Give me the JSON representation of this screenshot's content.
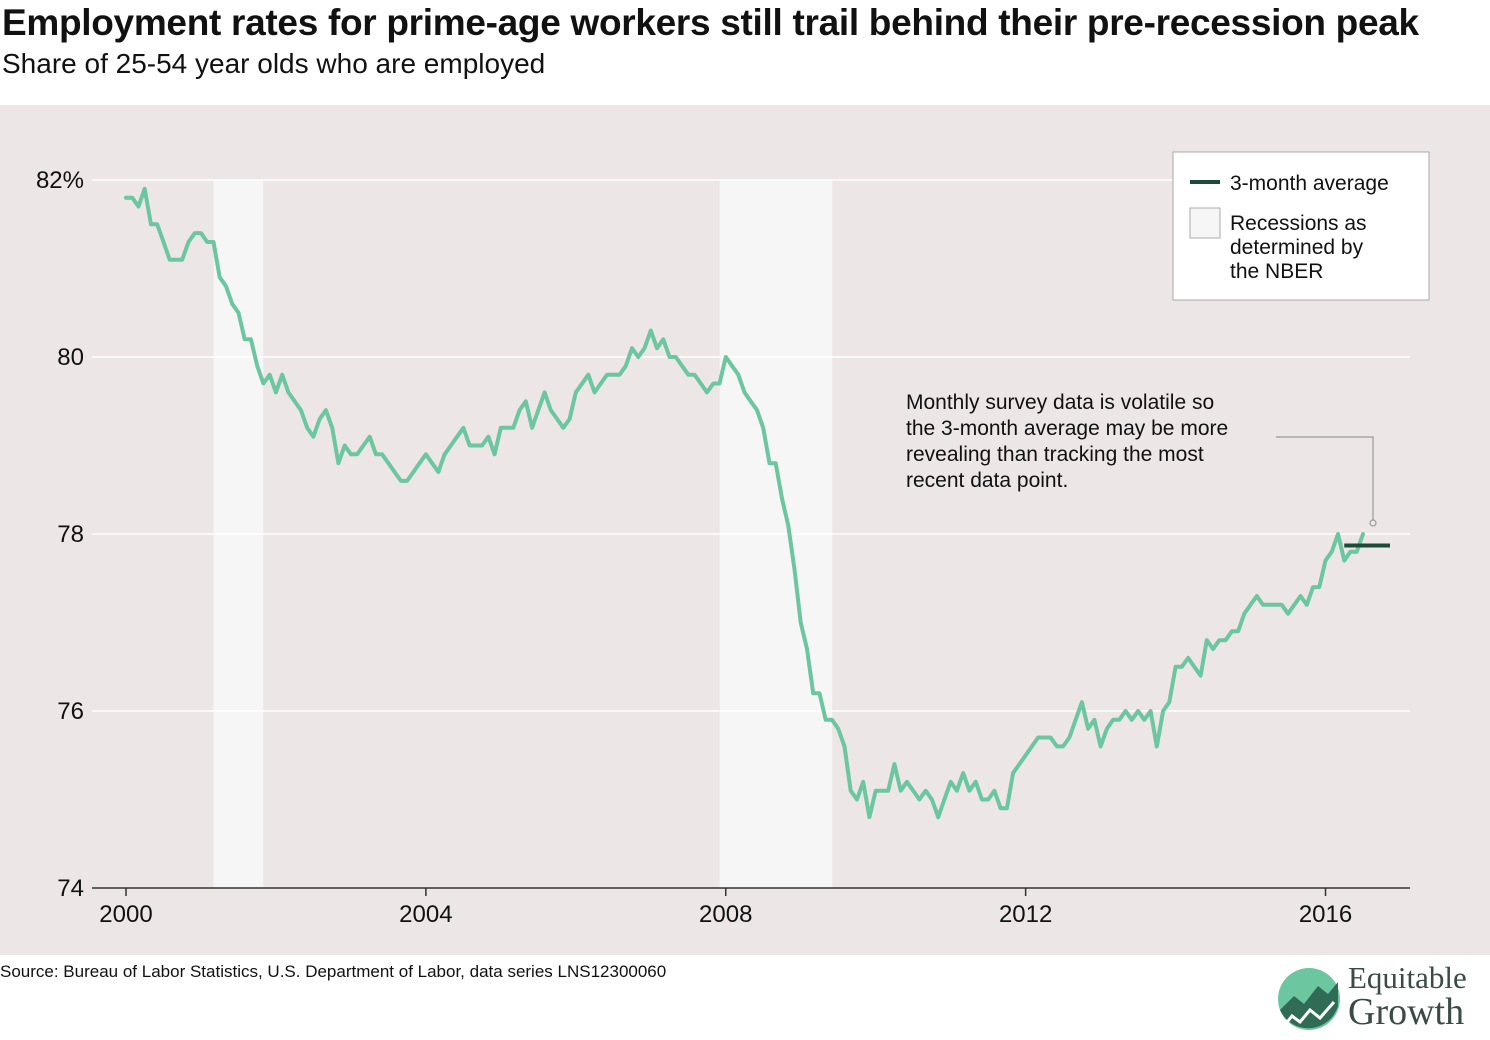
{
  "title": "Employment rates for prime-age workers still trail behind their pre-recession peak",
  "subtitle": "Share of 25-54 year olds who are employed",
  "source": "Source: Bureau of Labor Statistics, U.S. Department of Labor, data series LNS12300060",
  "logo": {
    "line1": "Equitable",
    "line2": "Growth"
  },
  "colors": {
    "background": "#ece7e6",
    "line": "#6cc6a0",
    "average": "#1d4b3a",
    "recession": "#f7f6f6",
    "grid": "#ffffff"
  },
  "chart_data": {
    "type": "line",
    "x_ticks": [
      "2000",
      "2004",
      "2008",
      "2012",
      "2016"
    ],
    "y_ticks": [
      "82%",
      "80",
      "78",
      "76",
      "74"
    ],
    "ylim": [
      74,
      82
    ],
    "xlim": [
      2000,
      2017
    ],
    "recessions": [
      {
        "start": 2001.17,
        "end": 2001.83
      },
      {
        "start": 2007.92,
        "end": 2009.42
      }
    ],
    "legend": {
      "average_label": "3-month average",
      "recession_label_lines": [
        "Recessions as",
        "determined by",
        "the NBER"
      ]
    },
    "annotation": {
      "lines": [
        "Monthly survey data is volatile so",
        "the 3-month average may be more",
        "revealing than tracking the most",
        "recent data point."
      ]
    },
    "average": {
      "start": 2016.25,
      "end": 2016.83,
      "value": 77.87
    },
    "series": [
      {
        "start_year": 2000,
        "values": [
          81.8,
          81.8,
          81.7,
          81.9,
          81.5,
          81.5,
          81.3,
          81.1,
          81.1,
          81.1,
          81.3,
          81.4,
          81.4,
          81.3,
          81.3,
          80.9,
          80.8,
          80.6,
          80.5,
          80.2,
          80.2,
          79.9,
          79.7,
          79.8,
          79.6,
          79.8,
          79.6,
          79.5,
          79.4,
          79.2,
          79.1,
          79.3,
          79.4,
          79.2,
          78.8,
          79.0,
          78.9,
          78.9,
          79.0,
          79.1,
          78.9,
          78.9,
          78.8,
          78.7,
          78.6,
          78.6,
          78.7,
          78.8,
          78.9,
          78.8,
          78.7,
          78.9,
          79.0,
          79.1,
          79.2,
          79.0,
          79.0,
          79.0,
          79.1,
          78.9,
          79.2,
          79.2,
          79.2,
          79.4,
          79.5,
          79.2,
          79.4,
          79.6,
          79.4,
          79.3,
          79.2,
          79.3,
          79.6,
          79.7,
          79.8,
          79.6,
          79.7,
          79.8,
          79.8,
          79.8,
          79.9,
          80.1,
          80.0,
          80.1,
          80.3,
          80.1,
          80.2,
          80.0,
          80.0,
          79.9,
          79.8,
          79.8,
          79.7,
          79.6,
          79.7,
          79.7,
          80.0,
          79.9,
          79.8,
          79.6,
          79.5,
          79.4,
          79.2,
          78.8,
          78.8,
          78.4,
          78.1,
          77.6,
          77.0,
          76.7,
          76.2,
          76.2,
          75.9,
          75.9,
          75.8,
          75.6,
          75.1,
          75.0,
          75.2,
          74.8,
          75.1,
          75.1,
          75.1,
          75.4,
          75.1,
          75.2,
          75.1,
          75.0,
          75.1,
          75.0,
          74.8,
          75.0,
          75.2,
          75.1,
          75.3,
          75.1,
          75.2,
          75.0,
          75.0,
          75.1,
          74.9,
          74.9,
          75.3,
          75.4,
          75.5,
          75.6,
          75.7,
          75.7,
          75.7,
          75.6,
          75.6,
          75.7,
          75.9,
          76.1,
          75.8,
          75.9,
          75.6,
          75.8,
          75.9,
          75.9,
          76.0,
          75.9,
          76.0,
          75.9,
          76.0,
          75.6,
          76.0,
          76.1,
          76.5,
          76.5,
          76.6,
          76.5,
          76.4,
          76.8,
          76.7,
          76.8,
          76.8,
          76.9,
          76.9,
          77.1,
          77.2,
          77.3,
          77.2,
          77.2,
          77.2,
          77.2,
          77.1,
          77.2,
          77.3,
          77.2,
          77.4,
          77.4,
          77.7,
          77.8,
          78.0,
          77.7,
          77.8,
          77.8,
          78.0
        ]
      }
    ]
  }
}
